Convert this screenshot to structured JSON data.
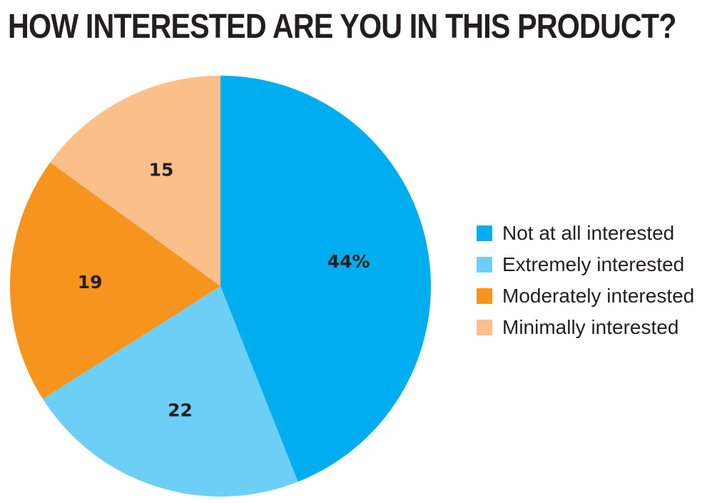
{
  "chart_data": {
    "type": "pie",
    "title": "HOW INTERESTED ARE YOU IN THIS PRODUCT?",
    "categories": [
      "Not at all interested",
      "Extremely interested",
      "Moderately interested",
      "Minimally interested"
    ],
    "values": [
      44,
      22,
      19,
      15
    ],
    "value_labels": [
      "44%",
      "22",
      "19",
      "15"
    ],
    "colors": [
      "#00aeef",
      "#6dcff6",
      "#f7941d",
      "#fbc08a"
    ],
    "start_angle_deg": 0,
    "direction": "clockwise",
    "legend_position": "right"
  }
}
